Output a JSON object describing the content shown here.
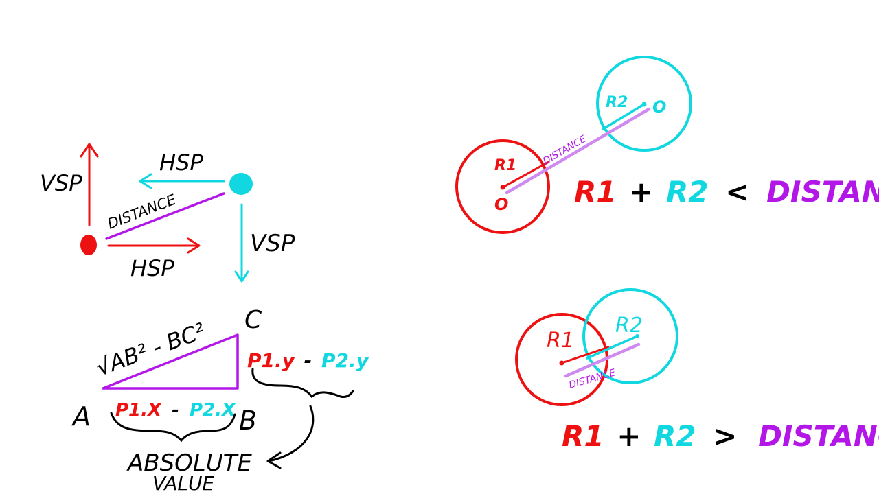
{
  "colors": {
    "red": "#ee1111",
    "cyan": "#11d8e0",
    "purple": "#b217e8",
    "light_purple": "#cf8af0",
    "black": "#000000"
  },
  "left": {
    "vsp_left": "VSP",
    "hsp_top": "HSP",
    "distance": "DISTANCE",
    "vsp_right": "VSP",
    "hsp_bottom": "HSP"
  },
  "triangle": {
    "hyp": "√AB² - BC²",
    "label_a": "A",
    "label_b": "B",
    "label_c": "C",
    "bottom_p1": "P1.X",
    "bottom_minus": "-",
    "bottom_p2": "P2.X",
    "right_p1": "P1.y",
    "right_minus": "-",
    "right_p2": "P2.y",
    "absolute_line1": "ABSOLUTE",
    "absolute_line2": "VALUE"
  },
  "top_right": {
    "r1": "R1",
    "r2": "R2",
    "o_left": "O",
    "o_right": "O",
    "distance": "DISTANCE",
    "eq_r1": "R1",
    "eq_plus": "+",
    "eq_r2": "R2",
    "eq_op": "<",
    "eq_distance": "DISTANCE"
  },
  "bottom_right": {
    "r1": "R1",
    "r2": "R2",
    "distance": "DISTANCE",
    "eq_r1": "R1",
    "eq_plus": "+",
    "eq_r2": "R2",
    "eq_op": ">",
    "eq_distance": "DISTANCE"
  }
}
